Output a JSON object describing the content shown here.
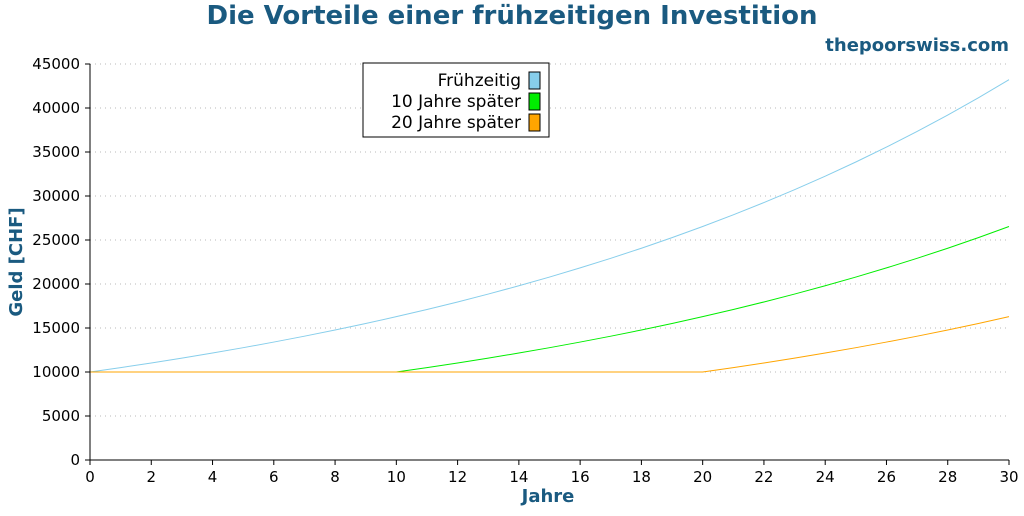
{
  "chart_data": {
    "type": "line",
    "title": "Die Vorteile einer frühzeitigen Investition",
    "source": "thepoorswiss.com",
    "xlabel": "Jahre",
    "ylabel": "Geld [CHF]",
    "xlim": [
      0,
      30
    ],
    "ylim": [
      0,
      45000
    ],
    "x_ticks": [
      0,
      2,
      4,
      6,
      8,
      10,
      12,
      14,
      16,
      18,
      20,
      22,
      24,
      26,
      28,
      30
    ],
    "y_ticks": [
      0,
      5000,
      10000,
      15000,
      20000,
      25000,
      30000,
      35000,
      40000,
      45000
    ],
    "grid": "horizontal-dotted",
    "legend_position": "top-left-center",
    "x": [
      0,
      1,
      2,
      3,
      4,
      5,
      6,
      7,
      8,
      9,
      10,
      11,
      12,
      13,
      14,
      15,
      16,
      17,
      18,
      19,
      20,
      21,
      22,
      23,
      24,
      25,
      26,
      27,
      28,
      29,
      30
    ],
    "series": [
      {
        "name": "Frühzeitig",
        "color": "#87ceeb",
        "values": [
          10000,
          10500,
          11025,
          11576,
          12155,
          12763,
          13401,
          14071,
          14775,
          15513,
          16289,
          17103,
          17959,
          18856,
          19799,
          20789,
          21829,
          22920,
          24066,
          25270,
          26533,
          27860,
          29253,
          30715,
          32251,
          33864,
          35557,
          37335,
          39201,
          41161,
          43219
        ]
      },
      {
        "name": "10 Jahre später",
        "color": "#00ee00",
        "values": [
          10000,
          10000,
          10000,
          10000,
          10000,
          10000,
          10000,
          10000,
          10000,
          10000,
          10000,
          10500,
          11025,
          11576,
          12155,
          12763,
          13401,
          14071,
          14775,
          15513,
          16289,
          17103,
          17959,
          18856,
          19799,
          20789,
          21829,
          22920,
          24066,
          25270,
          26533
        ]
      },
      {
        "name": "20 Jahre später",
        "color": "#ffa500",
        "values": [
          10000,
          10000,
          10000,
          10000,
          10000,
          10000,
          10000,
          10000,
          10000,
          10000,
          10000,
          10000,
          10000,
          10000,
          10000,
          10000,
          10000,
          10000,
          10000,
          10000,
          10000,
          10500,
          11025,
          11576,
          12155,
          12763,
          13401,
          14071,
          14775,
          15513,
          16289
        ]
      }
    ]
  }
}
